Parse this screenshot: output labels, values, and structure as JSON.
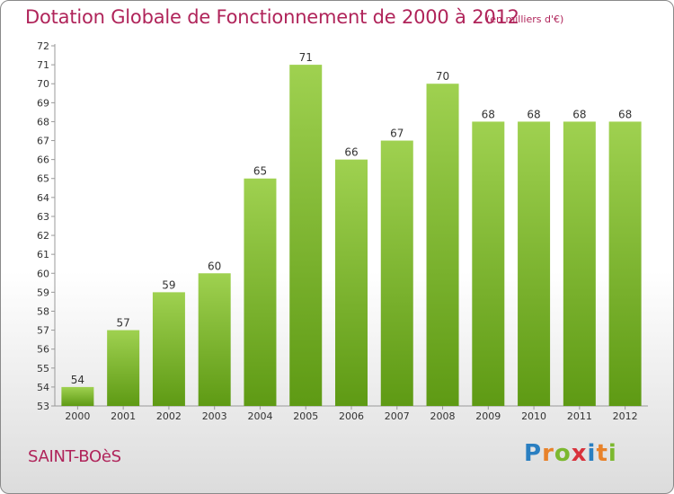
{
  "header": {
    "title": "Dotation Globale de Fonctionnement de 2000 à 2012",
    "unit": "(en milliers d'€)"
  },
  "footer": {
    "commune": "SAINT-BOèS",
    "logo_letters": [
      {
        "ch": "P",
        "color": "#2a7fc1"
      },
      {
        "ch": "r",
        "color": "#e8822a"
      },
      {
        "ch": "o",
        "color": "#7cb82f"
      },
      {
        "ch": "x",
        "color": "#d8323c"
      },
      {
        "ch": "i",
        "color": "#2a7fc1"
      },
      {
        "ch": "t",
        "color": "#e8822a"
      },
      {
        "ch": "i",
        "color": "#7cb82f"
      }
    ]
  },
  "chart_data": {
    "type": "bar",
    "title": "Dotation Globale de Fonctionnement de 2000 à 2012",
    "subtitle": "(en milliers d'€)",
    "categories": [
      "2000",
      "2001",
      "2002",
      "2003",
      "2004",
      "2005",
      "2006",
      "2007",
      "2008",
      "2009",
      "2010",
      "2011",
      "2012"
    ],
    "values": [
      54,
      57,
      59,
      60,
      65,
      71,
      66,
      67,
      70,
      68,
      68,
      68,
      68
    ],
    "ylim": [
      53,
      72
    ],
    "ytick_step": 1,
    "grid": false,
    "bar_color_top": "#9fd150",
    "bar_color_bottom": "#5e9a14"
  }
}
